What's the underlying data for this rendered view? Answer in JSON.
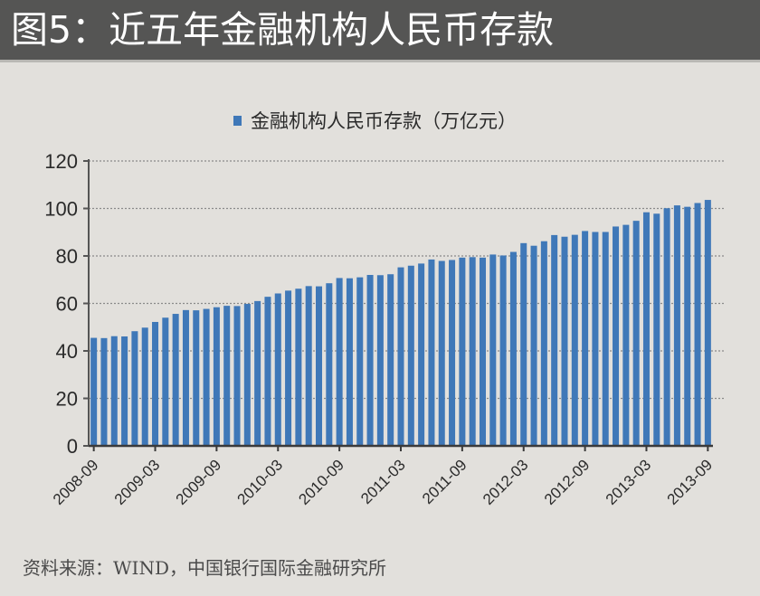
{
  "header": {
    "title": "图5：近五年金融机构人民币存款"
  },
  "legend": {
    "label": "金融机构人民币存款（万亿元）"
  },
  "source": {
    "text": "资料来源：WIND，中国银行国际金融研究所"
  },
  "colors": {
    "bar": "#3f78b8",
    "header_bg": "#555554",
    "background": "#e2e0dc",
    "grid": "#8a8a8a",
    "axis": "#555555"
  },
  "chart_data": {
    "type": "bar",
    "title": "图5：近五年金融机构人民币存款",
    "legend": [
      "金融机构人民币存款（万亿元）"
    ],
    "legend_position": "top",
    "xlabel": "",
    "ylabel": "",
    "ylim": [
      0,
      120
    ],
    "yticks": [
      0,
      20,
      40,
      60,
      80,
      100,
      120
    ],
    "grid": true,
    "x_tick_labels": [
      "2008-09",
      "2009-03",
      "2009-09",
      "2010-03",
      "2010-09",
      "2011-03",
      "2011-09",
      "2012-03",
      "2012-09",
      "2013-03",
      "2013-09"
    ],
    "categories": [
      "2008-09",
      "2008-10",
      "2008-11",
      "2008-12",
      "2009-01",
      "2009-02",
      "2009-03",
      "2009-04",
      "2009-05",
      "2009-06",
      "2009-07",
      "2009-08",
      "2009-09",
      "2009-10",
      "2009-11",
      "2009-12",
      "2010-01",
      "2010-02",
      "2010-03",
      "2010-04",
      "2010-05",
      "2010-06",
      "2010-07",
      "2010-08",
      "2010-09",
      "2010-10",
      "2010-11",
      "2010-12",
      "2011-01",
      "2011-02",
      "2011-03",
      "2011-04",
      "2011-05",
      "2011-06",
      "2011-07",
      "2011-08",
      "2011-09",
      "2011-10",
      "2011-11",
      "2011-12",
      "2012-01",
      "2012-02",
      "2012-03",
      "2012-04",
      "2012-05",
      "2012-06",
      "2012-07",
      "2012-08",
      "2012-09",
      "2012-10",
      "2012-11",
      "2012-12",
      "2013-01",
      "2013-02",
      "2013-03",
      "2013-04",
      "2013-05",
      "2013-06",
      "2013-07",
      "2013-08",
      "2013-09"
    ],
    "series": [
      {
        "name": "金融机构人民币存款（万亿元）",
        "values": [
          45.5,
          45.4,
          46.2,
          46.1,
          48.3,
          49.8,
          52.2,
          54.0,
          55.6,
          57.2,
          57.1,
          57.7,
          58.4,
          59.0,
          58.9,
          59.8,
          61.0,
          62.8,
          64.2,
          65.4,
          66.2,
          67.3,
          67.2,
          68.5,
          70.7,
          70.6,
          71.0,
          72.0,
          71.9,
          72.3,
          75.2,
          75.9,
          76.8,
          78.5,
          77.9,
          78.3,
          79.3,
          79.5,
          79.3,
          80.6,
          80.2,
          81.7,
          85.4,
          84.3,
          86.2,
          88.8,
          88.1,
          88.9,
          90.5,
          90.1,
          90.1,
          92.4,
          93.1,
          94.8,
          98.4,
          97.8,
          100.1,
          101.3,
          100.7,
          102.3,
          103.6
        ]
      }
    ]
  }
}
